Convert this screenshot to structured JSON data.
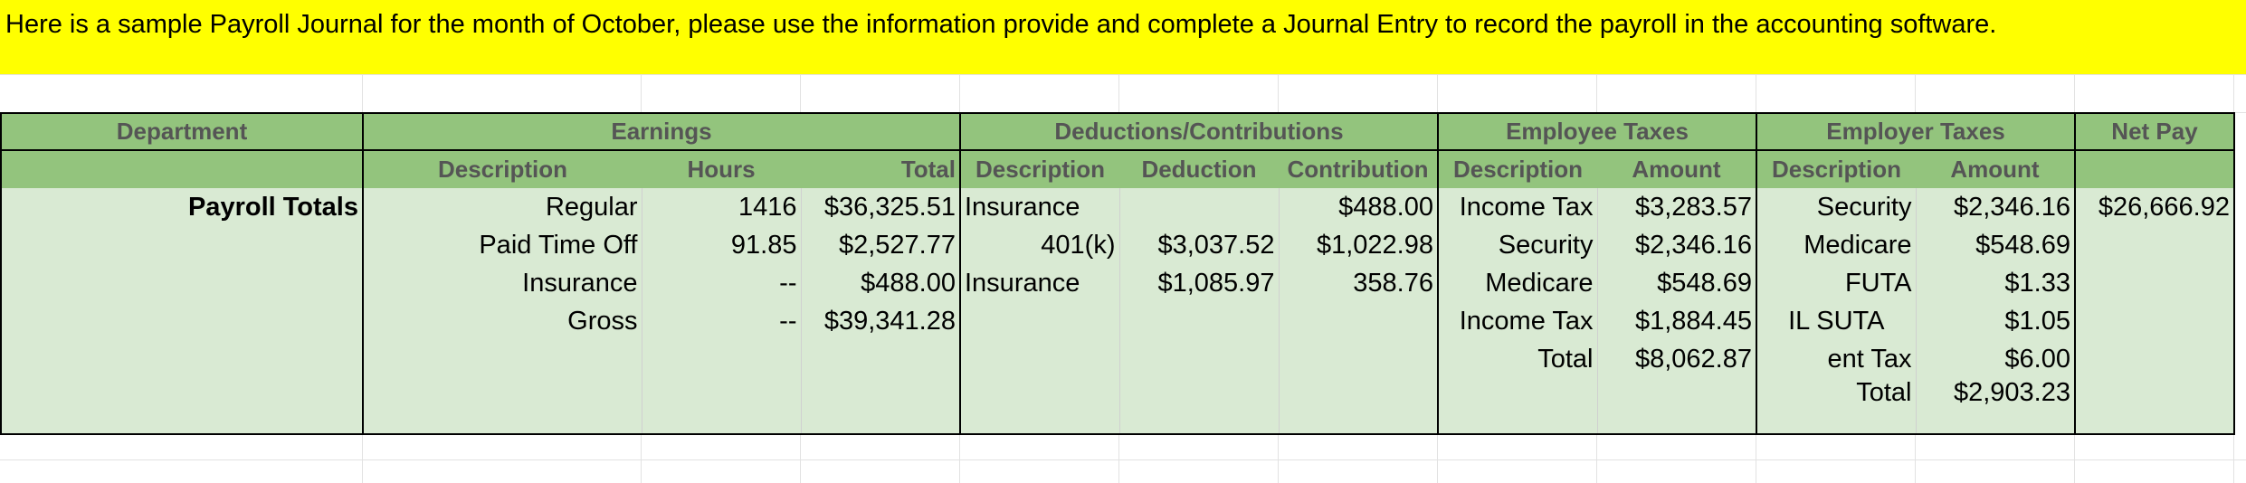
{
  "instruction": "Here is a sample Payroll Journal for the month of October, please use the information provide and complete a Journal Entry to record the payroll in the accounting software.",
  "headers": {
    "department": "Department",
    "earnings": "Earnings",
    "deductions": "Deductions/Contributions",
    "employee_taxes": "Employee Taxes",
    "employer_taxes": "Employer Taxes",
    "net_pay": "Net Pay"
  },
  "subheaders": {
    "earn_description": "Description",
    "earn_hours": "Hours",
    "earn_total": "Total",
    "ded_description": "Description",
    "ded_deduction": "Deduction",
    "ded_contribution": "Contribution",
    "emp_description": "Description",
    "emp_amount": "Amount",
    "er_description": "Description",
    "er_amount": "Amount"
  },
  "department_label": "Payroll Totals",
  "rows": [
    {
      "earn_desc": "Regular",
      "hours": "1416",
      "earn_total": "$36,325.51",
      "ded_desc": "Insurance",
      "deduction": "",
      "contribution": "$488.00",
      "emp_desc": "Income Tax",
      "emp_amount": "$3,283.57",
      "er_desc": "Security",
      "er_amount": "$2,346.16",
      "net_pay": "$26,666.92"
    },
    {
      "earn_desc": "Paid Time Off",
      "hours": "91.85",
      "earn_total": "$2,527.77",
      "ded_desc": "401(k)",
      "deduction": "$3,037.52",
      "contribution": "$1,022.98",
      "emp_desc": "Security",
      "emp_amount": "$2,346.16",
      "er_desc": "Medicare",
      "er_amount": "$548.69",
      "net_pay": ""
    },
    {
      "earn_desc": "Insurance",
      "hours": "--",
      "earn_total": "$488.00",
      "ded_desc": "Insurance",
      "deduction": "$1,085.97",
      "contribution": "358.76",
      "emp_desc": "Medicare",
      "emp_amount": "$548.69",
      "er_desc": "FUTA",
      "er_amount": "$1.33",
      "net_pay": ""
    },
    {
      "earn_desc": "Gross",
      "hours": "--",
      "earn_total": "$39,341.28",
      "ded_desc": "",
      "deduction": "",
      "contribution": "",
      "emp_desc": "Income Tax",
      "emp_amount": "$1,884.45",
      "er_desc": "IL SUTA",
      "er_amount": "$1.05",
      "net_pay": ""
    },
    {
      "earn_desc": "",
      "hours": "",
      "earn_total": "",
      "ded_desc": "",
      "deduction": "",
      "contribution": "",
      "emp_desc": "Total",
      "emp_amount": "$8,062.87",
      "er_desc": "ent Tax",
      "er_amount": "$6.00",
      "net_pay": ""
    },
    {
      "earn_desc": "",
      "hours": "",
      "earn_total": "",
      "ded_desc": "",
      "deduction": "",
      "contribution": "",
      "emp_desc": "",
      "emp_amount": "",
      "er_desc": "Total",
      "er_amount": "$2,903.23",
      "net_pay": ""
    }
  ]
}
